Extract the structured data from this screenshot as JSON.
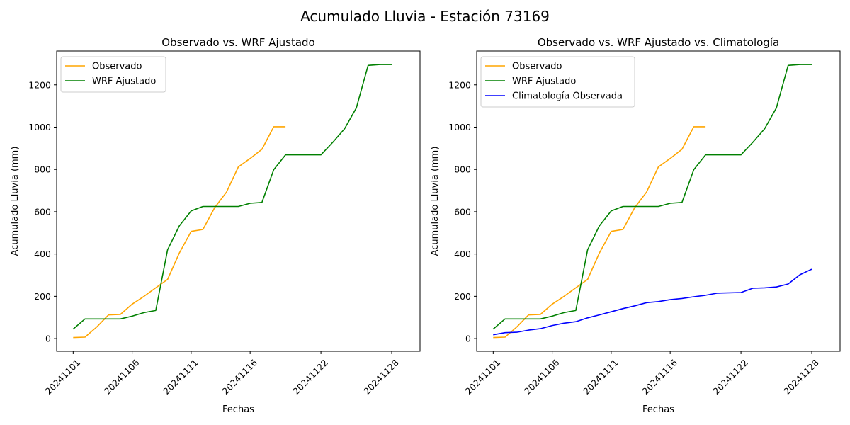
{
  "figure": {
    "suptitle": "Acumulado Lluvia - Estación 73169"
  },
  "colors": {
    "observado": "#ffa500",
    "wrf": "#008000",
    "climatologia": "#0000ff"
  },
  "chart_data": [
    {
      "type": "line",
      "title": "Observado vs. WRF Ajustado",
      "xlabel": "Fechas",
      "ylabel": "Acumulado Lluvia (mm)",
      "xtick_labels": [
        "20241101",
        "20241106",
        "20241111",
        "20241116",
        "20241122",
        "20241128"
      ],
      "ytick_values": [
        0,
        200,
        400,
        600,
        800,
        1000,
        1200
      ],
      "ylim": [
        -60,
        1360
      ],
      "grid": false,
      "legend_position": "upper left",
      "x": [
        "20241101",
        "20241102",
        "20241103",
        "20241104",
        "20241105",
        "20241106",
        "20241107",
        "20241108",
        "20241109",
        "20241110",
        "20241111",
        "20241112",
        "20241113",
        "20241114",
        "20241115",
        "20241116",
        "20241117",
        "20241118",
        "20241119",
        "20241120",
        "20241122",
        "20241123",
        "20241124",
        "20241125",
        "20241126",
        "20241127",
        "20241128",
        "20241129"
      ],
      "series": [
        {
          "name": "Observado",
          "color": "#ffa500",
          "values": [
            5,
            7,
            55,
            112,
            114,
            163,
            200,
            240,
            280,
            405,
            507,
            516,
            620,
            693,
            812,
            852,
            895,
            1002,
            1002,
            null,
            null,
            null,
            null,
            null,
            null,
            null,
            null,
            null
          ]
        },
        {
          "name": "WRF Ajustado",
          "color": "#008000",
          "values": [
            45,
            93,
            93,
            93,
            93,
            106,
            123,
            133,
            420,
            533,
            604,
            625,
            625,
            625,
            625,
            640,
            644,
            799,
            869,
            869,
            869,
            928,
            992,
            1091,
            1292,
            1296,
            1296,
            null
          ]
        }
      ]
    },
    {
      "type": "line",
      "title": "Observado vs. WRF Ajustado vs. Climatología",
      "xlabel": "Fechas",
      "ylabel": "Acumulado Lluvia (mm)",
      "xtick_labels": [
        "20241101",
        "20241106",
        "20241111",
        "20241116",
        "20241122",
        "20241128"
      ],
      "ytick_values": [
        0,
        200,
        400,
        600,
        800,
        1000,
        1200
      ],
      "ylim": [
        -60,
        1360
      ],
      "grid": false,
      "legend_position": "upper left",
      "x": [
        "20241101",
        "20241102",
        "20241103",
        "20241104",
        "20241105",
        "20241106",
        "20241107",
        "20241108",
        "20241109",
        "20241110",
        "20241111",
        "20241112",
        "20241113",
        "20241114",
        "20241115",
        "20241116",
        "20241117",
        "20241118",
        "20241119",
        "20241120",
        "20241122",
        "20241123",
        "20241124",
        "20241125",
        "20241126",
        "20241127",
        "20241128",
        "20241129"
      ],
      "series": [
        {
          "name": "Observado",
          "color": "#ffa500",
          "values": [
            5,
            7,
            55,
            112,
            114,
            163,
            200,
            240,
            280,
            405,
            507,
            516,
            620,
            693,
            812,
            852,
            895,
            1002,
            1002,
            null,
            null,
            null,
            null,
            null,
            null,
            null,
            null,
            null
          ]
        },
        {
          "name": "WRF Ajustado",
          "color": "#008000",
          "values": [
            45,
            93,
            93,
            93,
            93,
            106,
            123,
            133,
            420,
            533,
            604,
            625,
            625,
            625,
            625,
            640,
            644,
            799,
            869,
            869,
            869,
            928,
            992,
            1091,
            1292,
            1296,
            1296,
            null
          ]
        },
        {
          "name": "Climatología Observada",
          "color": "#0000ff",
          "values": [
            18,
            28,
            30,
            40,
            47,
            62,
            73,
            80,
            98,
            112,
            127,
            142,
            155,
            170,
            175,
            184,
            190,
            198,
            205,
            215,
            218,
            238,
            240,
            244,
            258,
            302,
            328,
            null
          ]
        }
      ]
    }
  ]
}
